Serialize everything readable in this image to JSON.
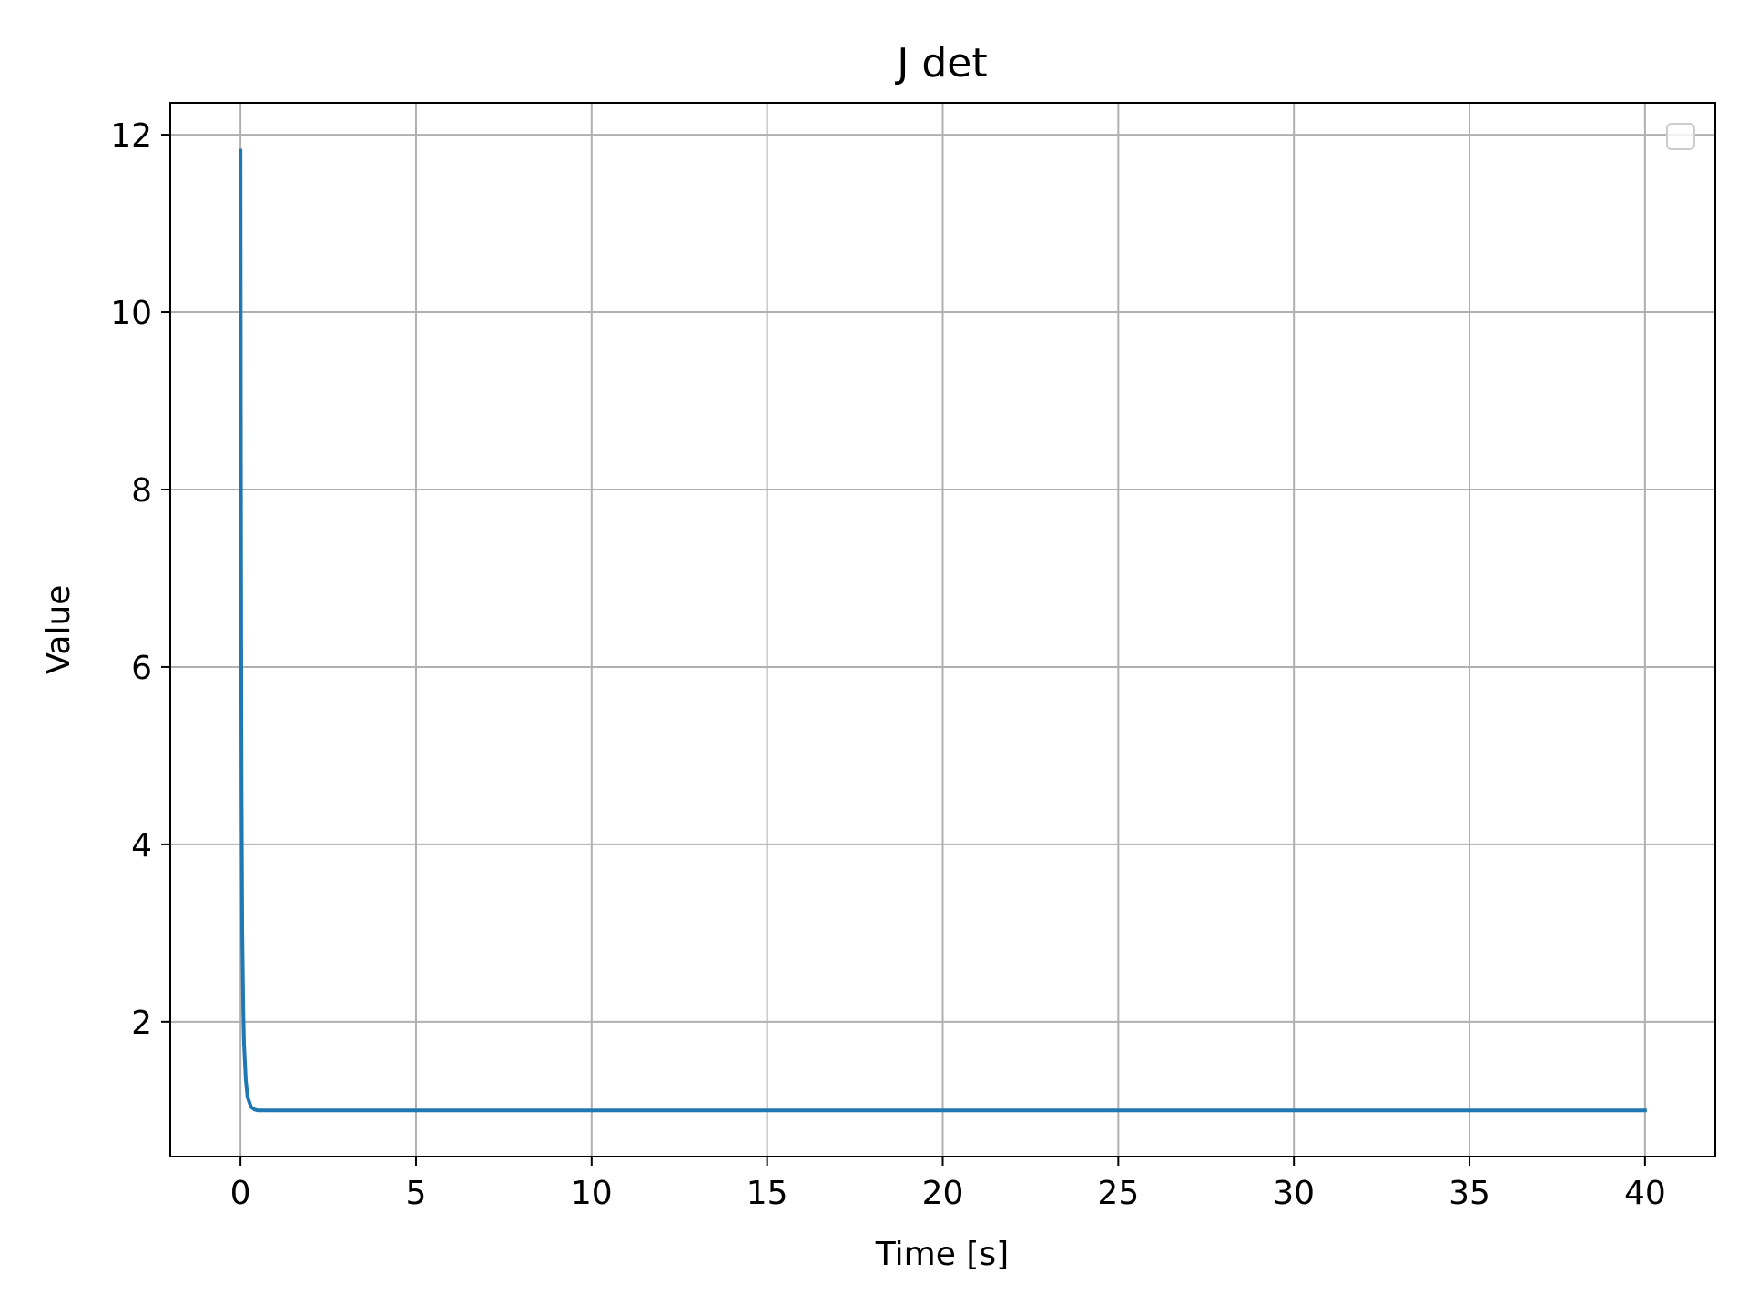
{
  "chart_data": {
    "type": "line",
    "title": "J det",
    "xlabel": "Time [s]",
    "ylabel": "Value",
    "xlim": [
      -2,
      42
    ],
    "ylim": [
      0.48,
      12.36
    ],
    "xticks": [
      0,
      5,
      10,
      15,
      20,
      25,
      30,
      35,
      40
    ],
    "yticks": [
      2,
      4,
      6,
      8,
      10,
      12
    ],
    "grid": true,
    "legend": {
      "location": "upper right",
      "entries": []
    },
    "series": [
      {
        "color": "#1f77b4",
        "x": [
          0,
          0.01,
          0.02,
          0.03,
          0.05,
          0.08,
          0.1,
          0.15,
          0.2,
          0.3,
          0.4,
          0.5,
          0.7,
          1,
          5,
          10,
          15,
          20,
          25,
          30,
          35,
          40
        ],
        "y": [
          11.82,
          8.5,
          6.2,
          4.6,
          3.0,
          2.1,
          1.75,
          1.35,
          1.15,
          1.04,
          1.01,
          1.0,
          1.0,
          1.0,
          1.0,
          1.0,
          1.0,
          1.0,
          1.0,
          1.0,
          1.0,
          1.0
        ]
      }
    ]
  }
}
